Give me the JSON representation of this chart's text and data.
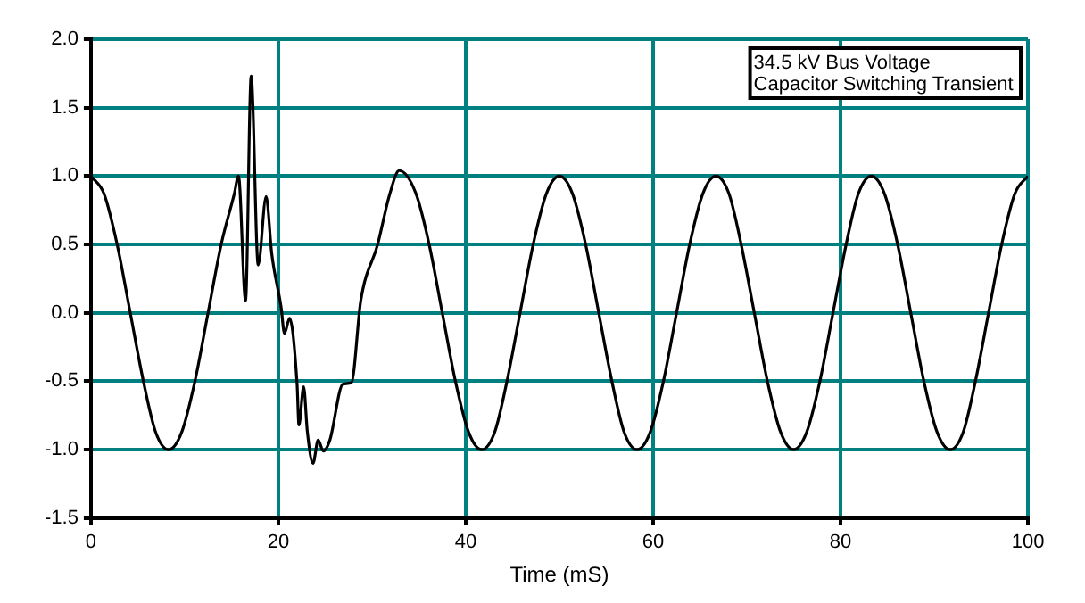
{
  "chart_data": {
    "type": "line",
    "xlabel": "Time (mS)",
    "annotations": [
      "34.5 kV Bus Voltage",
      "Capacitor Switching Transient"
    ],
    "series": [
      {
        "color": "#000000",
        "x": [
          0,
          1.4,
          2.8,
          4.2,
          5.6,
          6.9,
          8.3,
          9.7,
          11.1,
          12.5,
          13.9,
          15.3,
          15.75,
          16.5,
          17.1,
          17.85,
          18.7,
          19.3,
          20.3,
          20.65,
          21.2,
          22,
          22.2,
          22.7,
          23.1,
          23.7,
          24.25,
          24.8,
          25.5,
          26.9,
          27.8,
          28.8,
          30.6,
          31.9,
          32.9,
          34.7,
          36.1,
          37.5,
          38.9,
          40.3,
          41.7,
          43.1,
          44.4,
          45.8,
          47.2,
          48.6,
          50.0,
          51.4,
          52.8,
          54.2,
          55.6,
          56.9,
          58.3,
          59.7,
          61.1,
          62.5,
          63.9,
          65.3,
          66.7,
          68.1,
          69.4,
          70.8,
          72.2,
          73.6,
          75.0,
          76.4,
          77.8,
          79.2,
          80.6,
          81.9,
          83.3,
          84.7,
          86.1,
          87.5,
          88.9,
          90.3,
          91.7,
          93.1,
          94.4,
          95.8,
          97.2,
          98.6,
          100.0
        ],
        "values": [
          1,
          0.87,
          0.5,
          0,
          -0.5,
          -0.87,
          -1,
          -0.87,
          -0.5,
          0,
          0.5,
          0.87,
          1.0,
          0.09,
          1.73,
          0.35,
          0.85,
          0.43,
          0.04,
          -0.15,
          -0.04,
          -0.52,
          -0.82,
          -0.54,
          -0.87,
          -1.1,
          -0.93,
          -1.01,
          -0.93,
          -0.52,
          -0.51,
          0.09,
          0.5,
          0.87,
          1.04,
          0.87,
          0.5,
          0,
          -0.5,
          -0.87,
          -1,
          -0.87,
          -0.5,
          0,
          0.5,
          0.87,
          1,
          0.87,
          0.5,
          0,
          -0.5,
          -0.87,
          -1,
          -0.87,
          -0.5,
          0,
          0.5,
          0.87,
          1,
          0.87,
          0.5,
          0,
          -0.5,
          -0.87,
          -1,
          -0.87,
          -0.5,
          0,
          0.5,
          0.87,
          1,
          0.87,
          0.5,
          0,
          -0.5,
          -0.87,
          -1,
          -0.87,
          -0.5,
          0,
          0.5,
          0.87,
          1
        ]
      }
    ],
    "xlim": [
      0,
      100
    ],
    "xticks": [
      0,
      20,
      40,
      60,
      80,
      100
    ],
    "ylim": [
      -1.5,
      2.0
    ],
    "yticks": [
      {
        "value": -1.5,
        "label": "-1.5"
      },
      {
        "value": -1,
        "label": "-1.0"
      },
      {
        "value": -0.5,
        "label": "-0.5"
      },
      {
        "value": 0,
        "label": "0.0"
      },
      {
        "value": 0.5,
        "label": "0.5"
      },
      {
        "value": 1,
        "label": "1.0"
      },
      {
        "value": 1.5,
        "label": "1.5"
      },
      {
        "value": 2,
        "label": "2.0"
      }
    ],
    "grid": true,
    "legend": false,
    "marker": "none",
    "line_style": "solid"
  }
}
